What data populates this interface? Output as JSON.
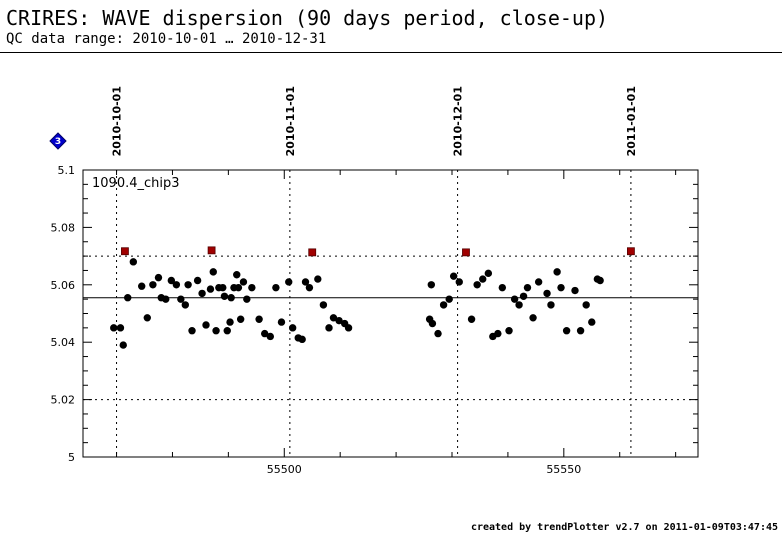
{
  "header": {
    "title": "CRIRES: WAVE dispersion (90 days period, close-up)",
    "subtitle": "QC data range: 2010-10-01 … 2010-12-31"
  },
  "footer": {
    "text": "created by trendPlotter v2.7 on 2011-01-09T03:47:45"
  },
  "marker_label": "3",
  "colors": {
    "points": "#000000",
    "outliers": "#a00000",
    "marker": "#0000cc"
  },
  "chart_data": {
    "type": "scatter",
    "series_label": "1090.4_chip3",
    "xlim": [
      55464,
      55574
    ],
    "ylim": [
      5,
      5.1
    ],
    "xticks": [
      55500,
      55550
    ],
    "xminor_step": 10,
    "yticks": [
      5,
      5.02,
      5.04,
      5.06,
      5.08,
      5.1
    ],
    "yminor_step": 0.005,
    "mean_line": 5.0555,
    "threshold_lines": [
      5.02,
      5.07
    ],
    "date_markers": [
      {
        "label": "2010-10-01",
        "mjd": 55470
      },
      {
        "label": "2010-11-01",
        "mjd": 55501
      },
      {
        "label": "2010-12-01",
        "mjd": 55531
      },
      {
        "label": "2011-01-01",
        "mjd": 55562
      }
    ],
    "outliers": [
      {
        "x": 55471.5,
        "y": 5.0717
      },
      {
        "x": 55487.0,
        "y": 5.072
      },
      {
        "x": 55505.0,
        "y": 5.0713
      },
      {
        "x": 55532.5,
        "y": 5.0713
      },
      {
        "x": 55562.0,
        "y": 5.0717
      }
    ],
    "points": [
      [
        55469.5,
        5.045
      ],
      [
        55470.7,
        5.045
      ],
      [
        55471.2,
        5.039
      ],
      [
        55472.0,
        5.0555
      ],
      [
        55473.0,
        5.068
      ],
      [
        55474.5,
        5.0595
      ],
      [
        55475.5,
        5.0485
      ],
      [
        55476.5,
        5.06
      ],
      [
        55477.5,
        5.0625
      ],
      [
        55478.0,
        5.0555
      ],
      [
        55478.8,
        5.055
      ],
      [
        55479.8,
        5.0615
      ],
      [
        55480.7,
        5.06
      ],
      [
        55481.5,
        5.055
      ],
      [
        55482.3,
        5.053
      ],
      [
        55482.8,
        5.06
      ],
      [
        55483.5,
        5.044
      ],
      [
        55484.5,
        5.0615
      ],
      [
        55485.3,
        5.057
      ],
      [
        55486.0,
        5.046
      ],
      [
        55486.8,
        5.0585
      ],
      [
        55487.3,
        5.0645
      ],
      [
        55487.8,
        5.044
      ],
      [
        55488.3,
        5.059
      ],
      [
        55489.0,
        5.059
      ],
      [
        55489.3,
        5.056
      ],
      [
        55489.8,
        5.044
      ],
      [
        55490.3,
        5.047
      ],
      [
        55490.5,
        5.0555
      ],
      [
        55491.0,
        5.059
      ],
      [
        55491.5,
        5.0635
      ],
      [
        55491.8,
        5.059
      ],
      [
        55492.2,
        5.048
      ],
      [
        55492.7,
        5.061
      ],
      [
        55493.3,
        5.055
      ],
      [
        55494.2,
        5.059
      ],
      [
        55495.5,
        5.048
      ],
      [
        55496.5,
        5.043
      ],
      [
        55497.5,
        5.042
      ],
      [
        55498.5,
        5.059
      ],
      [
        55499.5,
        5.047
      ],
      [
        55500.8,
        5.061
      ],
      [
        55501.5,
        5.045
      ],
      [
        55502.5,
        5.0415
      ],
      [
        55503.2,
        5.041
      ],
      [
        55503.8,
        5.061
      ],
      [
        55504.5,
        5.059
      ],
      [
        55506.0,
        5.062
      ],
      [
        55507.0,
        5.053
      ],
      [
        55508.0,
        5.045
      ],
      [
        55508.8,
        5.0485
      ],
      [
        55509.8,
        5.0475
      ],
      [
        55510.8,
        5.0465
      ],
      [
        55511.5,
        5.045
      ],
      [
        55526.0,
        5.048
      ],
      [
        55526.3,
        5.06
      ],
      [
        55526.5,
        5.0465
      ],
      [
        55527.5,
        5.043
      ],
      [
        55528.5,
        5.053
      ],
      [
        55529.5,
        5.055
      ],
      [
        55530.3,
        5.063
      ],
      [
        55531.3,
        5.061
      ],
      [
        55533.5,
        5.048
      ],
      [
        55534.5,
        5.06
      ],
      [
        55535.5,
        5.062
      ],
      [
        55536.5,
        5.064
      ],
      [
        55537.3,
        5.042
      ],
      [
        55538.2,
        5.043
      ],
      [
        55539.0,
        5.059
      ],
      [
        55540.2,
        5.044
      ],
      [
        55541.2,
        5.055
      ],
      [
        55542.0,
        5.053
      ],
      [
        55542.8,
        5.056
      ],
      [
        55543.5,
        5.059
      ],
      [
        55544.5,
        5.0485
      ],
      [
        55545.5,
        5.061
      ],
      [
        55547.0,
        5.057
      ],
      [
        55547.7,
        5.053
      ],
      [
        55548.8,
        5.0645
      ],
      [
        55549.5,
        5.059
      ],
      [
        55550.5,
        5.044
      ],
      [
        55552.0,
        5.058
      ],
      [
        55553.0,
        5.044
      ],
      [
        55554.0,
        5.053
      ],
      [
        55555.0,
        5.047
      ],
      [
        55556.0,
        5.062
      ],
      [
        55556.5,
        5.0615
      ]
    ]
  }
}
